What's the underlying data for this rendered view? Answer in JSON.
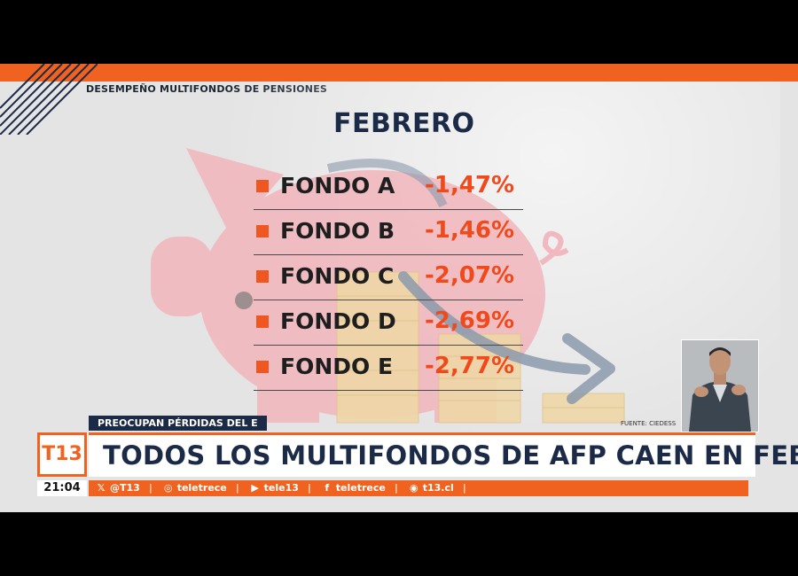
{
  "header": {
    "label": "DESEMPEÑO MULTIFONDOS DE PENSIONES"
  },
  "graphic": {
    "title": "FEBRERO",
    "funds": [
      {
        "name": "FONDO A",
        "value": "-1,47%"
      },
      {
        "name": "FONDO B",
        "value": "-1,46%"
      },
      {
        "name": "FONDO C",
        "value": "-2,07%"
      },
      {
        "name": "FONDO D",
        "value": "-2,69%"
      },
      {
        "name": "FONDO E",
        "value": "-2,77%"
      }
    ],
    "source": "FUENTE: CIEDESS"
  },
  "lower_third": {
    "kicker": "PREOCUPAN PÉRDIDAS DEL E",
    "headline": "TODOS LOS MULTIFONDOS DE AFP CAEN EN FEBRERO",
    "logo": "T13",
    "clock": "21:04"
  },
  "social": [
    {
      "icon": "twitter-icon",
      "label": "@T13"
    },
    {
      "icon": "instagram-icon",
      "label": "teletrece"
    },
    {
      "icon": "youtube-icon",
      "label": "tele13"
    },
    {
      "icon": "facebook-icon",
      "label": "teletrece"
    },
    {
      "icon": "web-icon",
      "label": "t13.cl"
    }
  ],
  "colors": {
    "accent": "#f0621f",
    "navy": "#1a2a47",
    "value_red": "#f04a1c",
    "piggy": "#f1b8bf",
    "coins": "#efd7a8"
  }
}
